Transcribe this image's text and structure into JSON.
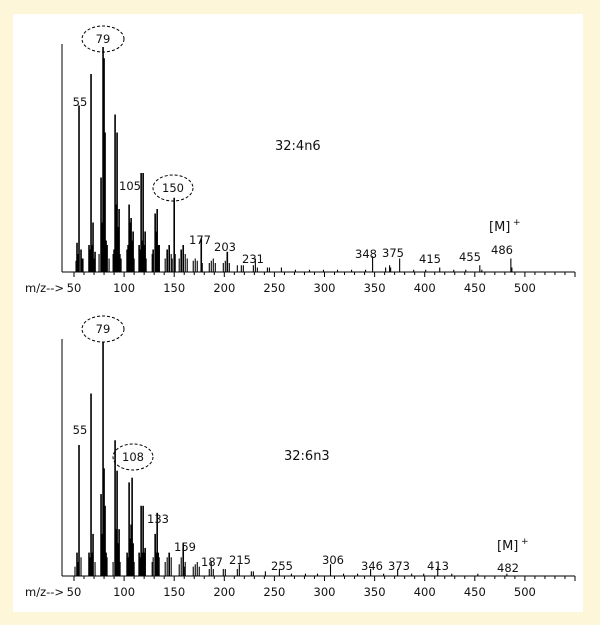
{
  "chart_data": [
    {
      "type": "bar",
      "title": "32:4n6",
      "xlabel": "m/z-->",
      "xlim": [
        50,
        550
      ],
      "xticks": [
        50,
        100,
        150,
        200,
        250,
        300,
        350,
        400,
        450,
        500
      ],
      "ylim": [
        0,
        100
      ],
      "molecular_ion_label": "[M]",
      "molecular_ion_sup": "+",
      "circled_peaks": [
        79,
        150
      ],
      "peaks": [
        {
          "mz": 52,
          "i": 5
        },
        {
          "mz": 53,
          "i": 13
        },
        {
          "mz": 54,
          "i": 8
        },
        {
          "mz": 55,
          "i": 74
        },
        {
          "mz": 57,
          "i": 10
        },
        {
          "mz": 58,
          "i": 6
        },
        {
          "mz": 59,
          "i": 6
        },
        {
          "mz": 65,
          "i": 12
        },
        {
          "mz": 66,
          "i": 10
        },
        {
          "mz": 67,
          "i": 88
        },
        {
          "mz": 68,
          "i": 12
        },
        {
          "mz": 69,
          "i": 22
        },
        {
          "mz": 70,
          "i": 6
        },
        {
          "mz": 71,
          "i": 9
        },
        {
          "mz": 75,
          "i": 8
        },
        {
          "mz": 77,
          "i": 42
        },
        {
          "mz": 78,
          "i": 22
        },
        {
          "mz": 79,
          "i": 100
        },
        {
          "mz": 80,
          "i": 95
        },
        {
          "mz": 81,
          "i": 62
        },
        {
          "mz": 82,
          "i": 14
        },
        {
          "mz": 83,
          "i": 12
        },
        {
          "mz": 85,
          "i": 6
        },
        {
          "mz": 89,
          "i": 8
        },
        {
          "mz": 90,
          "i": 10
        },
        {
          "mz": 91,
          "i": 70
        },
        {
          "mz": 92,
          "i": 30
        },
        {
          "mz": 93,
          "i": 62
        },
        {
          "mz": 94,
          "i": 20
        },
        {
          "mz": 95,
          "i": 28
        },
        {
          "mz": 96,
          "i": 8
        },
        {
          "mz": 97,
          "i": 6
        },
        {
          "mz": 103,
          "i": 10
        },
        {
          "mz": 104,
          "i": 12
        },
        {
          "mz": 105,
          "i": 30
        },
        {
          "mz": 106,
          "i": 22
        },
        {
          "mz": 107,
          "i": 24
        },
        {
          "mz": 108,
          "i": 14
        },
        {
          "mz": 109,
          "i": 18
        },
        {
          "mz": 110,
          "i": 6
        },
        {
          "mz": 115,
          "i": 12
        },
        {
          "mz": 116,
          "i": 10
        },
        {
          "mz": 117,
          "i": 44
        },
        {
          "mz": 118,
          "i": 14
        },
        {
          "mz": 119,
          "i": 44
        },
        {
          "mz": 120,
          "i": 12
        },
        {
          "mz": 121,
          "i": 18
        },
        {
          "mz": 122,
          "i": 6
        },
        {
          "mz": 128,
          "i": 8
        },
        {
          "mz": 129,
          "i": 10
        },
        {
          "mz": 131,
          "i": 26
        },
        {
          "mz": 132,
          "i": 18
        },
        {
          "mz": 133,
          "i": 28
        },
        {
          "mz": 134,
          "i": 12
        },
        {
          "mz": 135,
          "i": 12
        },
        {
          "mz": 141,
          "i": 6
        },
        {
          "mz": 143,
          "i": 10
        },
        {
          "mz": 145,
          "i": 12
        },
        {
          "mz": 147,
          "i": 8
        },
        {
          "mz": 148,
          "i": 6
        },
        {
          "mz": 150,
          "i": 33
        },
        {
          "mz": 151,
          "i": 8
        },
        {
          "mz": 155,
          "i": 6
        },
        {
          "mz": 157,
          "i": 10
        },
        {
          "mz": 159,
          "i": 12
        },
        {
          "mz": 161,
          "i": 8
        },
        {
          "mz": 163,
          "i": 6
        },
        {
          "mz": 169,
          "i": 5
        },
        {
          "mz": 171,
          "i": 6
        },
        {
          "mz": 173,
          "i": 5
        },
        {
          "mz": 177,
          "i": 15
        },
        {
          "mz": 178,
          "i": 4
        },
        {
          "mz": 185,
          "i": 4
        },
        {
          "mz": 187,
          "i": 5
        },
        {
          "mz": 189,
          "i": 6
        },
        {
          "mz": 191,
          "i": 4
        },
        {
          "mz": 199,
          "i": 4
        },
        {
          "mz": 201,
          "i": 5
        },
        {
          "mz": 203,
          "i": 9
        },
        {
          "mz": 205,
          "i": 4
        },
        {
          "mz": 213,
          "i": 3
        },
        {
          "mz": 217,
          "i": 3
        },
        {
          "mz": 219,
          "i": 3
        },
        {
          "mz": 229,
          "i": 3
        },
        {
          "mz": 231,
          "i": 6
        },
        {
          "mz": 233,
          "i": 2
        },
        {
          "mz": 243,
          "i": 2
        },
        {
          "mz": 245,
          "i": 2
        },
        {
          "mz": 257,
          "i": 2
        },
        {
          "mz": 271,
          "i": 1
        },
        {
          "mz": 285,
          "i": 1
        },
        {
          "mz": 299,
          "i": 1
        },
        {
          "mz": 313,
          "i": 1
        },
        {
          "mz": 327,
          "i": 1
        },
        {
          "mz": 341,
          "i": 1
        },
        {
          "mz": 348,
          "i": 7
        },
        {
          "mz": 361,
          "i": 2
        },
        {
          "mz": 365,
          "i": 3
        },
        {
          "mz": 366,
          "i": 2
        },
        {
          "mz": 375,
          "i": 6
        },
        {
          "mz": 389,
          "i": 1
        },
        {
          "mz": 401,
          "i": 1
        },
        {
          "mz": 415,
          "i": 2
        },
        {
          "mz": 429,
          "i": 1
        },
        {
          "mz": 441,
          "i": 1
        },
        {
          "mz": 455,
          "i": 3
        },
        {
          "mz": 457,
          "i": 1
        },
        {
          "mz": 486,
          "i": 6
        },
        {
          "mz": 487,
          "i": 2
        }
      ],
      "peak_labels": [
        {
          "mz": 79,
          "text": "79"
        },
        {
          "mz": 55,
          "text": "55"
        },
        {
          "mz": 105,
          "text": "105"
        },
        {
          "mz": 150,
          "text": "150"
        },
        {
          "mz": 177,
          "text": "177"
        },
        {
          "mz": 203,
          "text": "203"
        },
        {
          "mz": 231,
          "text": "231"
        },
        {
          "mz": 348,
          "text": "348"
        },
        {
          "mz": 375,
          "text": "375"
        },
        {
          "mz": 415,
          "text": "415"
        },
        {
          "mz": 455,
          "text": "455"
        },
        {
          "mz": 486,
          "text": "486"
        }
      ]
    },
    {
      "type": "bar",
      "title": "32:6n3",
      "xlabel": "m/z-->",
      "xlim": [
        50,
        550
      ],
      "xticks": [
        50,
        100,
        150,
        200,
        250,
        300,
        350,
        400,
        450,
        500
      ],
      "ylim": [
        0,
        100
      ],
      "molecular_ion_label": "[M]",
      "molecular_ion_sup": "+",
      "circled_peaks": [
        79,
        108
      ],
      "peaks": [
        {
          "mz": 51,
          "i": 4
        },
        {
          "mz": 53,
          "i": 10
        },
        {
          "mz": 54,
          "i": 6
        },
        {
          "mz": 55,
          "i": 56
        },
        {
          "mz": 57,
          "i": 8
        },
        {
          "mz": 65,
          "i": 10
        },
        {
          "mz": 66,
          "i": 8
        },
        {
          "mz": 67,
          "i": 78
        },
        {
          "mz": 68,
          "i": 10
        },
        {
          "mz": 69,
          "i": 18
        },
        {
          "mz": 71,
          "i": 6
        },
        {
          "mz": 77,
          "i": 35
        },
        {
          "mz": 78,
          "i": 18
        },
        {
          "mz": 79,
          "i": 100
        },
        {
          "mz": 80,
          "i": 46
        },
        {
          "mz": 81,
          "i": 30
        },
        {
          "mz": 82,
          "i": 10
        },
        {
          "mz": 83,
          "i": 8
        },
        {
          "mz": 89,
          "i": 6
        },
        {
          "mz": 91,
          "i": 58
        },
        {
          "mz": 92,
          "i": 20
        },
        {
          "mz": 93,
          "i": 45
        },
        {
          "mz": 94,
          "i": 14
        },
        {
          "mz": 95,
          "i": 20
        },
        {
          "mz": 96,
          "i": 6
        },
        {
          "mz": 103,
          "i": 10
        },
        {
          "mz": 104,
          "i": 8
        },
        {
          "mz": 105,
          "i": 40
        },
        {
          "mz": 106,
          "i": 16
        },
        {
          "mz": 107,
          "i": 22
        },
        {
          "mz": 108,
          "i": 42
        },
        {
          "mz": 109,
          "i": 14
        },
        {
          "mz": 110,
          "i": 6
        },
        {
          "mz": 115,
          "i": 10
        },
        {
          "mz": 116,
          "i": 8
        },
        {
          "mz": 117,
          "i": 30
        },
        {
          "mz": 118,
          "i": 10
        },
        {
          "mz": 119,
          "i": 30
        },
        {
          "mz": 120,
          "i": 10
        },
        {
          "mz": 121,
          "i": 12
        },
        {
          "mz": 128,
          "i": 6
        },
        {
          "mz": 129,
          "i": 8
        },
        {
          "mz": 131,
          "i": 18
        },
        {
          "mz": 132,
          "i": 10
        },
        {
          "mz": 133,
          "i": 27
        },
        {
          "mz": 134,
          "i": 10
        },
        {
          "mz": 135,
          "i": 8
        },
        {
          "mz": 141,
          "i": 6
        },
        {
          "mz": 143,
          "i": 8
        },
        {
          "mz": 145,
          "i": 10
        },
        {
          "mz": 147,
          "i": 8
        },
        {
          "mz": 155,
          "i": 5
        },
        {
          "mz": 157,
          "i": 8
        },
        {
          "mz": 159,
          "i": 14
        },
        {
          "mz": 160,
          "i": 4
        },
        {
          "mz": 161,
          "i": 6
        },
        {
          "mz": 169,
          "i": 4
        },
        {
          "mz": 171,
          "i": 5
        },
        {
          "mz": 173,
          "i": 6
        },
        {
          "mz": 175,
          "i": 4
        },
        {
          "mz": 185,
          "i": 3
        },
        {
          "mz": 187,
          "i": 6
        },
        {
          "mz": 189,
          "i": 3
        },
        {
          "mz": 199,
          "i": 3
        },
        {
          "mz": 201,
          "i": 3
        },
        {
          "mz": 213,
          "i": 3
        },
        {
          "mz": 215,
          "i": 5
        },
        {
          "mz": 227,
          "i": 2
        },
        {
          "mz": 229,
          "i": 2
        },
        {
          "mz": 241,
          "i": 2
        },
        {
          "mz": 255,
          "i": 3
        },
        {
          "mz": 267,
          "i": 1
        },
        {
          "mz": 281,
          "i": 1
        },
        {
          "mz": 293,
          "i": 1
        },
        {
          "mz": 306,
          "i": 5
        },
        {
          "mz": 319,
          "i": 1
        },
        {
          "mz": 333,
          "i": 1
        },
        {
          "mz": 346,
          "i": 3
        },
        {
          "mz": 359,
          "i": 1
        },
        {
          "mz": 373,
          "i": 3
        },
        {
          "mz": 387,
          "i": 1
        },
        {
          "mz": 399,
          "i": 1
        },
        {
          "mz": 413,
          "i": 4
        },
        {
          "mz": 427,
          "i": 1
        },
        {
          "mz": 453,
          "i": 1
        },
        {
          "mz": 482,
          "i": 1
        }
      ],
      "peak_labels": [
        {
          "mz": 79,
          "text": "79"
        },
        {
          "mz": 55,
          "text": "55"
        },
        {
          "mz": 108,
          "text": "108"
        },
        {
          "mz": 133,
          "text": "133"
        },
        {
          "mz": 159,
          "text": "159"
        },
        {
          "mz": 187,
          "text": "187"
        },
        {
          "mz": 215,
          "text": "215"
        },
        {
          "mz": 255,
          "text": "255"
        },
        {
          "mz": 306,
          "text": "306"
        },
        {
          "mz": 346,
          "text": "346"
        },
        {
          "mz": 373,
          "text": "373"
        },
        {
          "mz": 413,
          "text": "413"
        },
        {
          "mz": 482,
          "text": "482"
        }
      ]
    }
  ]
}
